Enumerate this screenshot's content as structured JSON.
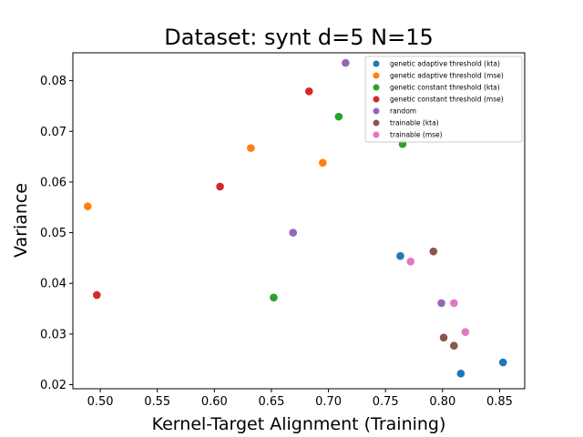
{
  "chart_data": {
    "type": "scatter",
    "title": "Dataset: synt d=5 N=15",
    "xlabel": "Kernel-Target Alignment (Training)",
    "ylabel": "Variance",
    "xlim": [
      0.476,
      0.872
    ],
    "ylim": [
      0.0192,
      0.0855
    ],
    "xticks": [
      "0.50",
      "0.55",
      "0.60",
      "0.65",
      "0.70",
      "0.75",
      "0.80",
      "0.85"
    ],
    "yticks": [
      "0.02",
      "0.03",
      "0.04",
      "0.05",
      "0.06",
      "0.07",
      "0.08"
    ],
    "xtick_values": [
      0.5,
      0.55,
      0.6,
      0.65,
      0.7,
      0.75,
      0.8,
      0.85
    ],
    "ytick_values": [
      0.02,
      0.03,
      0.04,
      0.05,
      0.06,
      0.07,
      0.08
    ],
    "legend_position": "top-right",
    "grid": false,
    "series": [
      {
        "name": "genetic adaptive threshold (kta)",
        "color": "#1f77b4",
        "points": [
          [
            0.763,
            0.0454
          ],
          [
            0.816,
            0.0222
          ],
          [
            0.853,
            0.0244
          ]
        ]
      },
      {
        "name": "genetic adaptive threshold (mse)",
        "color": "#ff7f0e",
        "points": [
          [
            0.489,
            0.0552
          ],
          [
            0.632,
            0.0667
          ],
          [
            0.695,
            0.0638
          ]
        ]
      },
      {
        "name": "genetic constant threshold (kta)",
        "color": "#2ca02c",
        "points": [
          [
            0.652,
            0.0372
          ],
          [
            0.709,
            0.0729
          ],
          [
            0.765,
            0.0675
          ]
        ]
      },
      {
        "name": "genetic constant threshold (mse)",
        "color": "#d62728",
        "points": [
          [
            0.497,
            0.0377
          ],
          [
            0.605,
            0.0591
          ],
          [
            0.683,
            0.0779
          ]
        ]
      },
      {
        "name": "random",
        "color": "#9467bd",
        "points": [
          [
            0.669,
            0.05
          ],
          [
            0.715,
            0.0835
          ],
          [
            0.799,
            0.0361
          ]
        ]
      },
      {
        "name": "trainable (kta)",
        "color": "#8c564b",
        "points": [
          [
            0.792,
            0.0463
          ],
          [
            0.801,
            0.0293
          ],
          [
            0.81,
            0.0277
          ]
        ]
      },
      {
        "name": "trainable (mse)",
        "color": "#e377c2",
        "points": [
          [
            0.772,
            0.0443
          ],
          [
            0.81,
            0.0361
          ],
          [
            0.82,
            0.0304
          ]
        ]
      }
    ]
  }
}
